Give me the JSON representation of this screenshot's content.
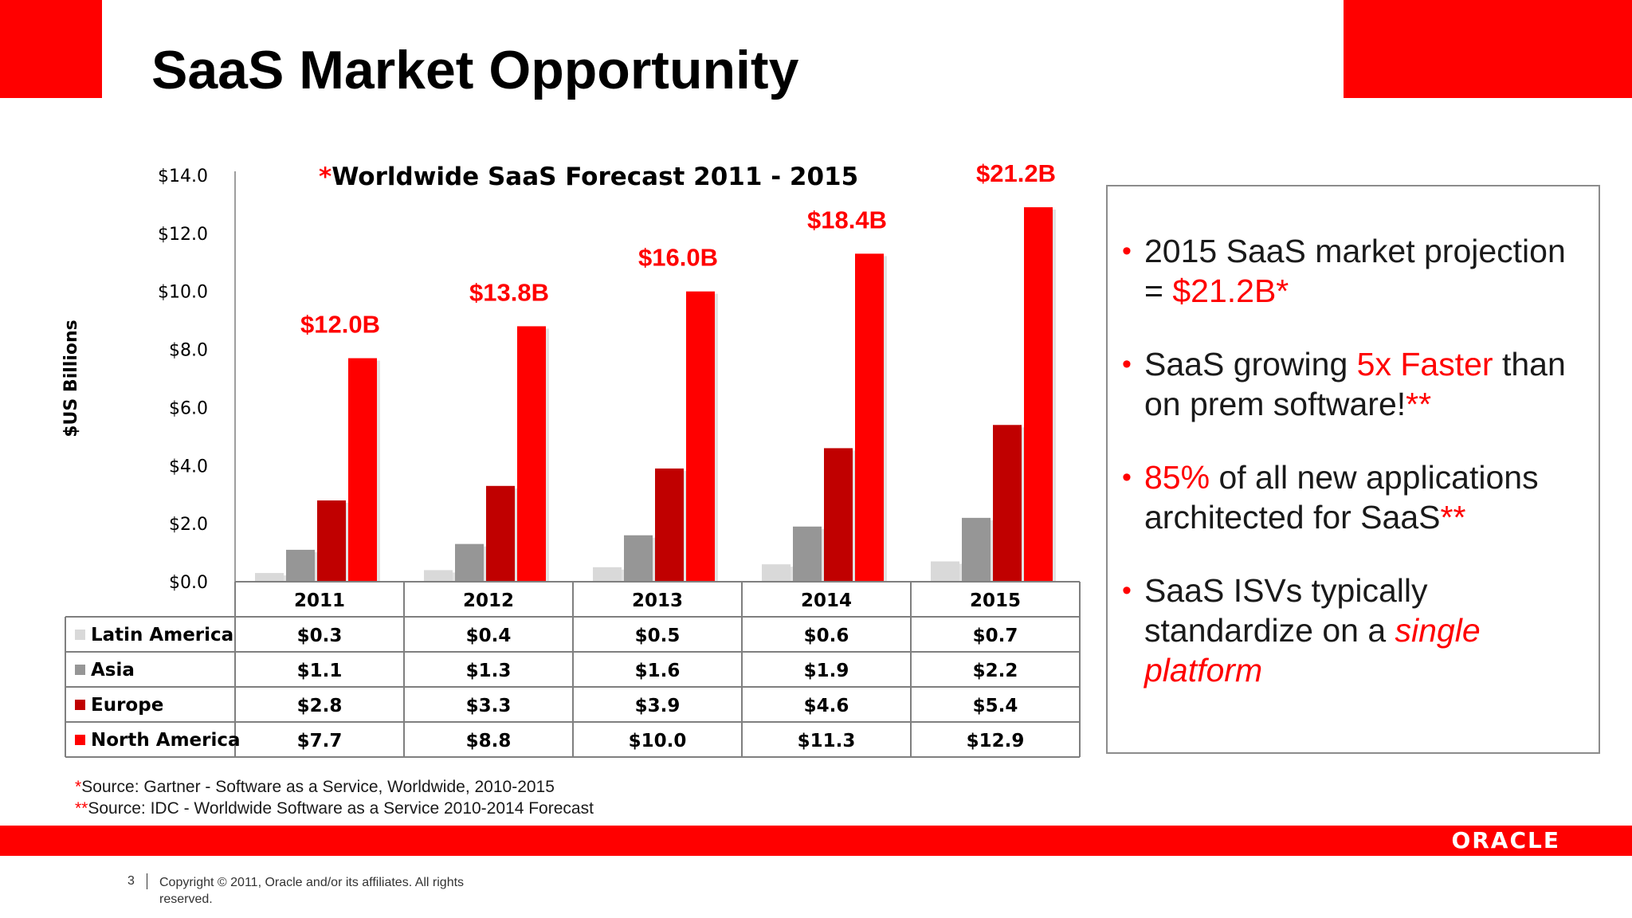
{
  "slide": {
    "title": "SaaS Market Opportunity"
  },
  "chart_data": {
    "type": "bar",
    "title_marker": "*",
    "title": "Worldwide SaaS Forecast  2011 - 2015",
    "ylabel": "$US Billions",
    "xlabel": "",
    "ylim": [
      0,
      14
    ],
    "yticks": [
      "$0.0",
      "$2.0",
      "$4.0",
      "$6.0",
      "$8.0",
      "$10.0",
      "$12.0",
      "$14.0"
    ],
    "categories": [
      "2011",
      "2012",
      "2013",
      "2014",
      "2015"
    ],
    "totals": [
      "$12.0B",
      "$13.8B",
      "$16.0B",
      "$18.4B",
      "$21.2B"
    ],
    "series": [
      {
        "name": "Latin America",
        "color": "#d9d9d9",
        "values": [
          0.3,
          0.4,
          0.5,
          0.6,
          0.7
        ],
        "labels": [
          "$0.3",
          "$0.4",
          "$0.5",
          "$0.6",
          "$0.7"
        ]
      },
      {
        "name": "Asia",
        "color": "#969696",
        "values": [
          1.1,
          1.3,
          1.6,
          1.9,
          2.2
        ],
        "labels": [
          "$1.1",
          "$1.3",
          "$1.6",
          "$1.9",
          "$2.2"
        ]
      },
      {
        "name": "Europe",
        "color": "#c00000",
        "values": [
          2.8,
          3.3,
          3.9,
          4.6,
          5.4
        ],
        "labels": [
          "$2.8",
          "$3.3",
          "$3.9",
          "$4.6",
          "$5.4"
        ]
      },
      {
        "name": "North America",
        "color": "#ff0000",
        "values": [
          7.7,
          8.8,
          10.0,
          11.3,
          12.9
        ],
        "labels": [
          "$7.7",
          "$8.8",
          "$10.0",
          "$11.3",
          "$12.9"
        ]
      }
    ],
    "grid": false,
    "legend": "data-table"
  },
  "bullets": [
    {
      "parts": [
        {
          "text": "2015 SaaS market projection = "
        },
        {
          "text": "$21.2B*",
          "style": "red"
        }
      ]
    },
    {
      "parts": [
        {
          "text": "SaaS growing "
        },
        {
          "text": "5x Faster",
          "style": "red"
        },
        {
          "text": " than on prem software!"
        },
        {
          "text": "**",
          "style": "red"
        }
      ]
    },
    {
      "parts": [
        {
          "text": "85%",
          "style": "red"
        },
        {
          "text": " of all new applications architected for SaaS"
        },
        {
          "text": "**",
          "style": "red"
        }
      ]
    },
    {
      "parts": [
        {
          "text": "SaaS ISVs typically standardize on a "
        },
        {
          "text": "single platform",
          "style": "red-italic"
        }
      ]
    }
  ],
  "bullet_glyph": "•",
  "sources": [
    {
      "marker": "*",
      "text": "Source: Gartner - Software as a Service, Worldwide, 2010-2015"
    },
    {
      "marker": "**",
      "text": "Source:  IDC - Worldwide Software as a Service 2010-2014 Forecast"
    }
  ],
  "footer": {
    "logo": "ORACLE",
    "page_number": "3",
    "copyright": "Copyright © 2011, Oracle and/or its affiliates. All rights reserved."
  },
  "colors": {
    "accent": "#ff0000"
  }
}
